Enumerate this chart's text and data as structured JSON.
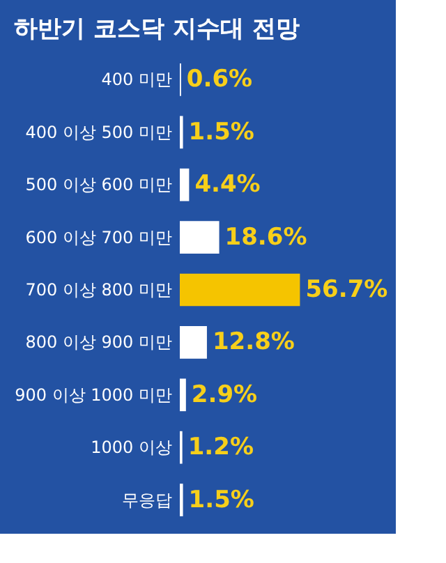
{
  "chart_data": {
    "type": "bar",
    "orientation": "horizontal",
    "title": "하반기 코스닥 지수대 전망",
    "categories": [
      "400 미만",
      "400 이상 500 미만",
      "500 이상 600 미만",
      "600 이상 700 미만",
      "700 이상 800 미만",
      "800 이상 900 미만",
      "900 이상 1000 미만",
      "1000 이상",
      "무응답"
    ],
    "values": [
      0.6,
      1.5,
      4.4,
      18.6,
      56.7,
      12.8,
      2.9,
      1.2,
      1.5
    ],
    "colors": [
      "#ffffff",
      "#ffffff",
      "#ffffff",
      "#ffffff",
      "#f5c400",
      "#ffffff",
      "#ffffff",
      "#ffffff",
      "#ffffff"
    ],
    "value_labels": [
      "0.6%",
      "1.5%",
      "4.4%",
      "18.6%",
      "56.7%",
      "12.8%",
      "2.9%",
      "1.2%",
      "1.5%"
    ],
    "grid": false
  }
}
